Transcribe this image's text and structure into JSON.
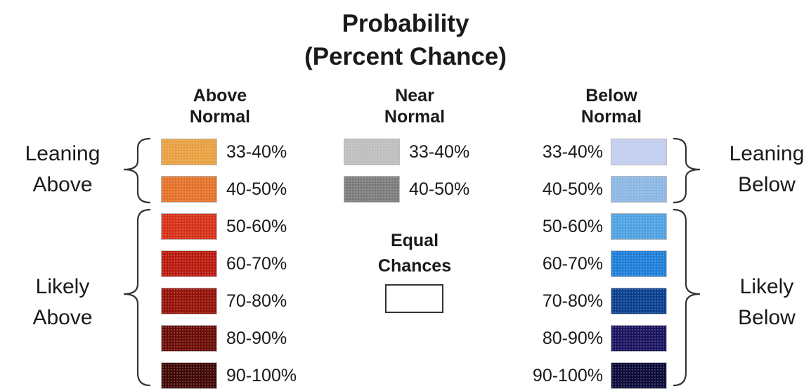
{
  "title": {
    "line1": "Probability",
    "line2": "(Percent Chance)"
  },
  "columns": {
    "above": {
      "line1": "Above",
      "line2": "Normal"
    },
    "near": {
      "line1": "Near",
      "line2": "Normal"
    },
    "below": {
      "line1": "Below",
      "line2": "Normal"
    }
  },
  "above_items": [
    {
      "label": "33-40%",
      "color": "#E8A040"
    },
    {
      "label": "40-50%",
      "color": "#E4722A"
    },
    {
      "label": "50-60%",
      "color": "#D63018"
    },
    {
      "label": "60-70%",
      "color": "#B81A0E"
    },
    {
      "label": "70-80%",
      "color": "#941208"
    },
    {
      "label": "80-90%",
      "color": "#6A0C06"
    },
    {
      "label": "90-100%",
      "color": "#400804"
    }
  ],
  "near_items": [
    {
      "label": "33-40%",
      "color": "#BEBEBE"
    },
    {
      "label": "40-50%",
      "color": "#7C7C7C"
    }
  ],
  "below_items": [
    {
      "label": "33-40%",
      "color": "#C2CDF0"
    },
    {
      "label": "40-50%",
      "color": "#8CB6E4"
    },
    {
      "label": "50-60%",
      "color": "#4EA2E2"
    },
    {
      "label": "60-70%",
      "color": "#1E7ED8"
    },
    {
      "label": "70-80%",
      "color": "#0A3F8E"
    },
    {
      "label": "80-90%",
      "color": "#1A1460"
    },
    {
      "label": "90-100%",
      "color": "#0C0A38"
    }
  ],
  "equal": {
    "line1": "Equal",
    "line2": "Chances"
  },
  "groups": {
    "leaning_above": {
      "line1": "Leaning",
      "line2": "Above"
    },
    "likely_above": {
      "line1": "Likely",
      "line2": "Above"
    },
    "leaning_below": {
      "line1": "Leaning",
      "line2": "Below"
    },
    "likely_below": {
      "line1": "Likely",
      "line2": "Below"
    }
  }
}
